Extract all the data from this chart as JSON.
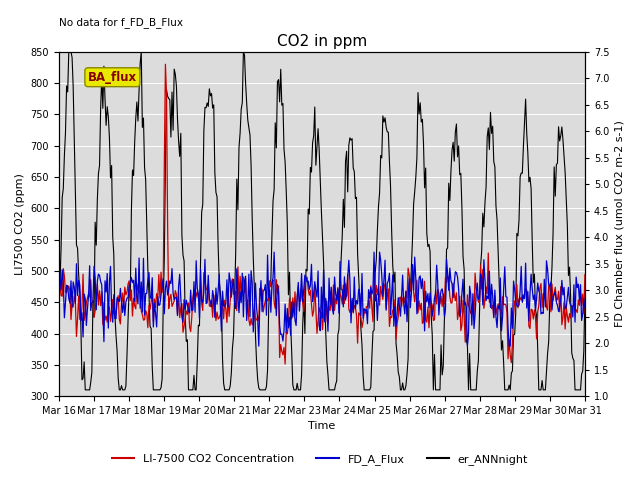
{
  "title": "CO2 in ppm",
  "no_data_text": "No data for f_FD_B_Flux",
  "xlabel": "Time",
  "ylabel_left": "LI7500 CO2 (ppm)",
  "ylabel_right": "FD Chamber flux (umol CO2 m-2 s-1)",
  "ylim_left": [
    300,
    850
  ],
  "ylim_right": [
    1.0,
    7.5
  ],
  "yticks_left": [
    300,
    350,
    400,
    450,
    500,
    550,
    600,
    650,
    700,
    750,
    800,
    850
  ],
  "yticks_right": [
    1.0,
    1.5,
    2.0,
    2.5,
    3.0,
    3.5,
    4.0,
    4.5,
    5.0,
    5.5,
    6.0,
    6.5,
    7.0,
    7.5
  ],
  "color_red": "#cc0000",
  "color_blue": "#0000cc",
  "color_black": "#000000",
  "bg_color": "#dcdcdc",
  "legend_entries": [
    "LI-7500 CO2 Concentration",
    "FD_A_Flux",
    "er_ANNnight"
  ],
  "ba_flux_label": "BA_flux",
  "ba_flux_box_color": "#e8e800",
  "ba_flux_text_color": "#880000",
  "n_points": 480,
  "x_start": 16.0,
  "x_end": 31.0,
  "xtick_labels": [
    "Mar 16",
    "Mar 17",
    "Mar 18",
    "Mar 19",
    "Mar 20",
    "Mar 21",
    "Mar 22",
    "Mar 23",
    "Mar 24",
    "Mar 25",
    "Mar 26",
    "Mar 27",
    "Mar 28",
    "Mar 29",
    "Mar 30",
    "Mar 31"
  ],
  "xtick_positions": [
    16,
    17,
    18,
    19,
    20,
    21,
    22,
    23,
    24,
    25,
    26,
    27,
    28,
    29,
    30,
    31
  ],
  "title_fontsize": 11,
  "label_fontsize": 8,
  "tick_fontsize": 7,
  "legend_fontsize": 8,
  "linewidth_red": 0.9,
  "linewidth_blue": 0.9,
  "linewidth_black": 0.8
}
